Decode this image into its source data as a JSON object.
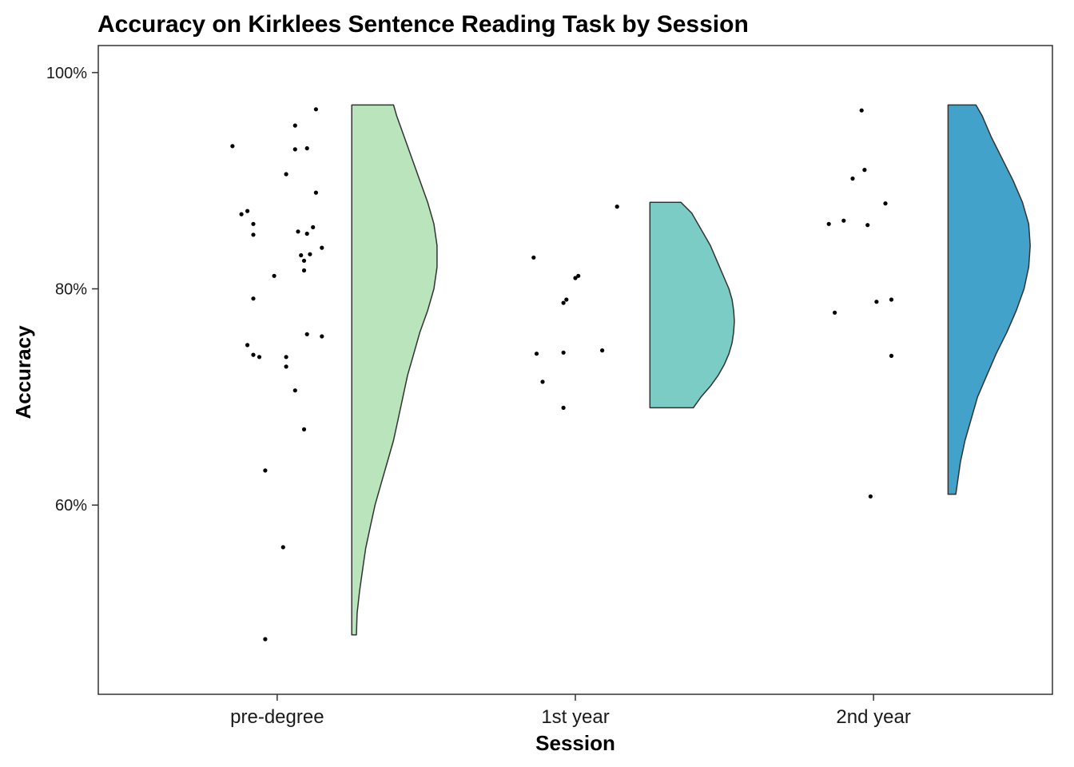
{
  "chart_data": {
    "type": "violin",
    "title": "Accuracy on Kirklees Sentence Reading Task by Session",
    "xlabel": "Session",
    "ylabel": "Accuracy",
    "categories": [
      "pre-degree",
      "1st year",
      "2nd year"
    ],
    "ylim": [
      42.5,
      102.5
    ],
    "yticks": [
      60,
      80,
      100
    ],
    "ytick_labels": [
      "60%",
      "80%",
      "100%"
    ],
    "grid": false,
    "legend": "none",
    "colors": [
      "#bae4bc",
      "#7bccc4",
      "#43a2ca"
    ],
    "outline_color": "#333333",
    "series": [
      {
        "category": "pre-degree",
        "points": [
          {
            "jitter": -0.15,
            "y": 93.2
          },
          {
            "jitter": 0.13,
            "y": 96.6
          },
          {
            "jitter": 0.06,
            "y": 95.1
          },
          {
            "jitter": 0.06,
            "y": 92.9
          },
          {
            "jitter": 0.1,
            "y": 93.0
          },
          {
            "jitter": 0.03,
            "y": 90.6
          },
          {
            "jitter": 0.13,
            "y": 88.9
          },
          {
            "jitter": -0.1,
            "y": 87.2
          },
          {
            "jitter": -0.12,
            "y": 86.9
          },
          {
            "jitter": -0.08,
            "y": 86.0
          },
          {
            "jitter": 0.12,
            "y": 85.7
          },
          {
            "jitter": 0.07,
            "y": 85.3
          },
          {
            "jitter": 0.1,
            "y": 85.1
          },
          {
            "jitter": -0.08,
            "y": 85.0
          },
          {
            "jitter": 0.15,
            "y": 83.8
          },
          {
            "jitter": 0.11,
            "y": 83.2
          },
          {
            "jitter": 0.08,
            "y": 83.1
          },
          {
            "jitter": 0.09,
            "y": 82.6
          },
          {
            "jitter": 0.09,
            "y": 81.7
          },
          {
            "jitter": -0.01,
            "y": 81.2
          },
          {
            "jitter": -0.08,
            "y": 79.1
          },
          {
            "jitter": 0.1,
            "y": 75.8
          },
          {
            "jitter": 0.15,
            "y": 75.6
          },
          {
            "jitter": -0.1,
            "y": 74.8
          },
          {
            "jitter": -0.08,
            "y": 73.9
          },
          {
            "jitter": -0.06,
            "y": 73.7
          },
          {
            "jitter": 0.03,
            "y": 73.7
          },
          {
            "jitter": 0.03,
            "y": 72.8
          },
          {
            "jitter": 0.06,
            "y": 70.6
          },
          {
            "jitter": 0.09,
            "y": 67.0
          },
          {
            "jitter": -0.04,
            "y": 63.2
          },
          {
            "jitter": 0.02,
            "y": 56.1
          },
          {
            "jitter": -0.04,
            "y": 47.6
          }
        ],
        "density_y": [
          48.0,
          50,
          52,
          54,
          56,
          58,
          60,
          62,
          64,
          66,
          68,
          70,
          72,
          74,
          76,
          78,
          80,
          82,
          84,
          86,
          88,
          90,
          92,
          94,
          96,
          97.0
        ],
        "density_width": [
          0.03,
          0.035,
          0.05,
          0.07,
          0.09,
          0.12,
          0.15,
          0.19,
          0.23,
          0.27,
          0.3,
          0.33,
          0.36,
          0.4,
          0.44,
          0.49,
          0.53,
          0.55,
          0.55,
          0.53,
          0.49,
          0.44,
          0.39,
          0.34,
          0.29,
          0.27
        ]
      },
      {
        "category": "1st year",
        "points": [
          {
            "jitter": 0.14,
            "y": 87.6
          },
          {
            "jitter": -0.14,
            "y": 82.9
          },
          {
            "jitter": 0.01,
            "y": 81.2
          },
          {
            "jitter": 0.0,
            "y": 81.0
          },
          {
            "jitter": -0.03,
            "y": 79.0
          },
          {
            "jitter": -0.04,
            "y": 78.7
          },
          {
            "jitter": 0.09,
            "y": 74.3
          },
          {
            "jitter": -0.13,
            "y": 74.0
          },
          {
            "jitter": -0.04,
            "y": 74.1
          },
          {
            "jitter": -0.11,
            "y": 71.4
          },
          {
            "jitter": -0.04,
            "y": 69.0
          }
        ],
        "density_y": [
          69.0,
          70,
          71,
          72,
          73,
          74,
          75,
          76,
          77,
          78,
          79,
          80,
          81,
          82,
          83,
          84,
          85,
          86,
          87,
          88.0
        ],
        "density_width": [
          0.28,
          0.33,
          0.39,
          0.44,
          0.48,
          0.51,
          0.53,
          0.54,
          0.545,
          0.54,
          0.53,
          0.51,
          0.48,
          0.45,
          0.42,
          0.39,
          0.35,
          0.31,
          0.27,
          0.2
        ]
      },
      {
        "category": "2nd year",
        "points": [
          {
            "jitter": -0.04,
            "y": 96.5
          },
          {
            "jitter": -0.03,
            "y": 91.0
          },
          {
            "jitter": -0.07,
            "y": 90.2
          },
          {
            "jitter": 0.04,
            "y": 87.9
          },
          {
            "jitter": -0.15,
            "y": 86.0
          },
          {
            "jitter": -0.1,
            "y": 86.3
          },
          {
            "jitter": -0.02,
            "y": 85.9
          },
          {
            "jitter": 0.01,
            "y": 78.8
          },
          {
            "jitter": 0.06,
            "y": 79.0
          },
          {
            "jitter": -0.13,
            "y": 77.8
          },
          {
            "jitter": 0.06,
            "y": 73.8
          },
          {
            "jitter": -0.01,
            "y": 60.8
          }
        ],
        "density_y": [
          61.0,
          62,
          64,
          66,
          68,
          70,
          72,
          74,
          76,
          78,
          80,
          82,
          84,
          86,
          88,
          90,
          92,
          94,
          96,
          97.0
        ],
        "density_width": [
          0.05,
          0.06,
          0.08,
          0.11,
          0.15,
          0.19,
          0.25,
          0.31,
          0.38,
          0.44,
          0.49,
          0.52,
          0.53,
          0.52,
          0.48,
          0.42,
          0.35,
          0.28,
          0.22,
          0.18
        ]
      }
    ]
  }
}
